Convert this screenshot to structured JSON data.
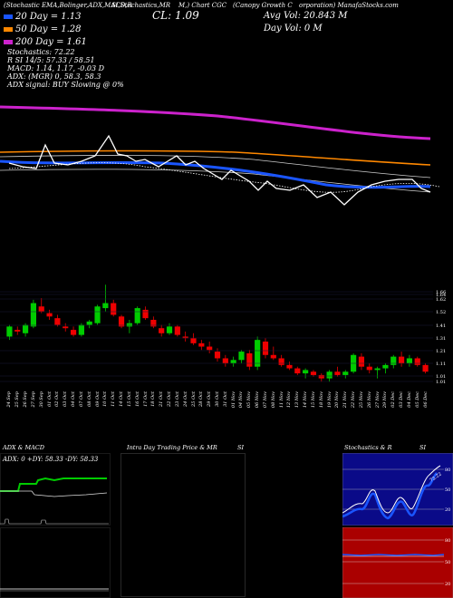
{
  "header": {
    "line1_left": "(Stochastic EMA,Bolinger,ADX,MACD,R",
    "line1_mid": "SI,Stochastics,MR",
    "line1_sym": "M,) Chart CGC",
    "line1_right": "(Canopy Growth C",
    "line1_right2": "orporation) ManafaStocks.com",
    "cl_label": "CL: 1.09",
    "avg_vol": "Avg Vol: 20.843 M",
    "day_vol": "Day Vol: 0   M"
  },
  "legend": [
    {
      "label": "20 Day = 1.13",
      "color": "#1a55ff"
    },
    {
      "label": "50 Day = 1.28",
      "color": "#ff8800"
    },
    {
      "label": "200 Day = 1.61",
      "color": "#cc22cc"
    }
  ],
  "indicators": {
    "stoch": "Stochastics: 72.22",
    "rsi": "R                SI 14/5: 57.33 / 58.51",
    "macd": "MACD: 1.14, 1.17, -0.03 D",
    "adx": "ADX:                              (MGR) 0, 58.3, 58.3",
    "adx_signal": "ADX signal:                                   BUY Slowing @ 0%"
  },
  "price_axis": [
    "1.66",
    "1.64",
    "1.62",
    "1.52",
    "1.41",
    "1.31",
    "1.21",
    "1.11",
    "1.01",
    "1.01"
  ],
  "date_labels": [
    "24 Sep",
    "25 Sep",
    "26 Sep",
    "27 Sep",
    "30 Sep",
    "01 Oct",
    "02 Oct",
    "03 Oct",
    "04 Oct",
    "07 Oct",
    "08 Oct",
    "09 Oct",
    "10 Oct",
    "11 Oct",
    "14 Oct",
    "15 Oct",
    "16 Oct",
    "17 Oct",
    "18 Oct",
    "21 Oct",
    "22 Oct",
    "23 Oct",
    "24 Oct",
    "25 Oct",
    "28 Oct",
    "29 Oct",
    "30 Oct",
    "31 Oct",
    "01 Nov",
    "04 Nov",
    "05 Nov",
    "06 Nov",
    "07 Nov",
    "08 Nov",
    "11 Nov",
    "12 Nov",
    "13 Nov",
    "14 Nov",
    "15 Nov",
    "18 Nov",
    "19 Nov",
    "20 Nov",
    "21 Nov",
    "22 Nov",
    "25 Nov",
    "26 Nov",
    "27 Nov",
    "29 Nov",
    "02 Dec",
    "03 Dec",
    "04 Dec",
    "05 Dec",
    "06 Dec"
  ],
  "panels": {
    "adx_title": "ADX  & MACD",
    "adx_values": "ADX: 0   +DY: 58.33  -DY: 58.33",
    "intra_title": "Intra  Day Trading Price  & MR",
    "intra_title2": "SI",
    "stoch_title": "Stochastics & R",
    "stoch_title2": "SI",
    "stoch_levels": [
      "80",
      "50",
      "20"
    ],
    "rsi_levels": [
      "80",
      "50",
      "20"
    ],
    "stoch_value": "72.22",
    "colors": {
      "up": "#00cc00",
      "down": "#ee0000",
      "blue": "#1a55ff",
      "orange": "#ff8800",
      "magenta": "#cc22cc"
    }
  },
  "chart_data": {
    "type": "candlestick",
    "dates": [
      "24 Sep",
      "25 Sep",
      "26 Sep",
      "27 Sep",
      "30 Sep",
      "01 Oct",
      "02 Oct",
      "03 Oct",
      "04 Oct",
      "07 Oct",
      "08 Oct",
      "09 Oct",
      "10 Oct",
      "11 Oct",
      "14 Oct",
      "15 Oct",
      "16 Oct",
      "17 Oct",
      "18 Oct",
      "21 Oct",
      "22 Oct",
      "23 Oct",
      "24 Oct",
      "25 Oct",
      "28 Oct",
      "29 Oct",
      "30 Oct",
      "31 Oct",
      "01 Nov",
      "04 Nov",
      "05 Nov",
      "06 Nov",
      "07 Nov",
      "08 Nov",
      "11 Nov",
      "12 Nov",
      "13 Nov",
      "14 Nov",
      "15 Nov",
      "18 Nov",
      "19 Nov",
      "20 Nov",
      "21 Nov",
      "22 Nov",
      "25 Nov",
      "26 Nov",
      "27 Nov",
      "29 Nov",
      "02 Dec",
      "03 Dec",
      "04 Dec",
      "05 Dec",
      "06 Dec"
    ],
    "candles": [
      [
        1.3,
        1.37,
        1.28,
        1.36
      ],
      [
        1.34,
        1.36,
        1.31,
        1.33
      ],
      [
        1.32,
        1.38,
        1.3,
        1.37
      ],
      [
        1.36,
        1.52,
        1.35,
        1.5
      ],
      [
        1.48,
        1.53,
        1.44,
        1.45
      ],
      [
        1.44,
        1.46,
        1.4,
        1.42
      ],
      [
        1.41,
        1.43,
        1.36,
        1.37
      ],
      [
        1.36,
        1.38,
        1.33,
        1.35
      ],
      [
        1.34,
        1.36,
        1.3,
        1.31
      ],
      [
        1.31,
        1.38,
        1.3,
        1.37
      ],
      [
        1.37,
        1.4,
        1.35,
        1.39
      ],
      [
        1.38,
        1.49,
        1.37,
        1.48
      ],
      [
        1.47,
        1.61,
        1.45,
        1.5
      ],
      [
        1.5,
        1.52,
        1.42,
        1.43
      ],
      [
        1.42,
        1.43,
        1.35,
        1.36
      ],
      [
        1.36,
        1.4,
        1.32,
        1.38
      ],
      [
        1.38,
        1.48,
        1.37,
        1.47
      ],
      [
        1.46,
        1.48,
        1.4,
        1.41
      ],
      [
        1.4,
        1.42,
        1.35,
        1.36
      ],
      [
        1.35,
        1.37,
        1.3,
        1.32
      ],
      [
        1.32,
        1.38,
        1.31,
        1.36
      ],
      [
        1.36,
        1.37,
        1.3,
        1.31
      ],
      [
        1.3,
        1.33,
        1.27,
        1.29
      ],
      [
        1.29,
        1.32,
        1.25,
        1.26
      ],
      [
        1.26,
        1.28,
        1.22,
        1.24
      ],
      [
        1.24,
        1.27,
        1.2,
        1.22
      ],
      [
        1.21,
        1.23,
        1.15,
        1.17
      ],
      [
        1.17,
        1.19,
        1.12,
        1.14
      ],
      [
        1.14,
        1.18,
        1.12,
        1.16
      ],
      [
        1.16,
        1.22,
        1.14,
        1.21
      ],
      [
        1.2,
        1.22,
        1.1,
        1.12
      ],
      [
        1.12,
        1.3,
        1.1,
        1.28
      ],
      [
        1.27,
        1.29,
        1.17,
        1.19
      ],
      [
        1.19,
        1.24,
        1.16,
        1.17
      ],
      [
        1.17,
        1.19,
        1.12,
        1.13
      ],
      [
        1.13,
        1.15,
        1.1,
        1.11
      ],
      [
        1.11,
        1.12,
        1.07,
        1.08
      ],
      [
        1.08,
        1.11,
        1.05,
        1.1
      ],
      [
        1.09,
        1.1,
        1.06,
        1.07
      ],
      [
        1.07,
        1.08,
        1.03,
        1.05
      ],
      [
        1.05,
        1.1,
        1.03,
        1.09
      ],
      [
        1.09,
        1.12,
        1.06,
        1.07
      ],
      [
        1.07,
        1.1,
        1.05,
        1.09
      ],
      [
        1.09,
        1.2,
        1.08,
        1.19
      ],
      [
        1.18,
        1.2,
        1.1,
        1.12
      ],
      [
        1.12,
        1.14,
        1.08,
        1.1
      ],
      [
        1.1,
        1.12,
        1.05,
        1.11
      ],
      [
        1.11,
        1.14,
        1.08,
        1.13
      ],
      [
        1.13,
        1.19,
        1.11,
        1.18
      ],
      [
        1.18,
        1.21,
        1.12,
        1.14
      ],
      [
        1.14,
        1.19,
        1.12,
        1.17
      ],
      [
        1.17,
        1.18,
        1.12,
        1.13
      ],
      [
        1.13,
        1.14,
        1.08,
        1.09
      ]
    ],
    "price_ylim": [
      1.01,
      1.66
    ]
  }
}
